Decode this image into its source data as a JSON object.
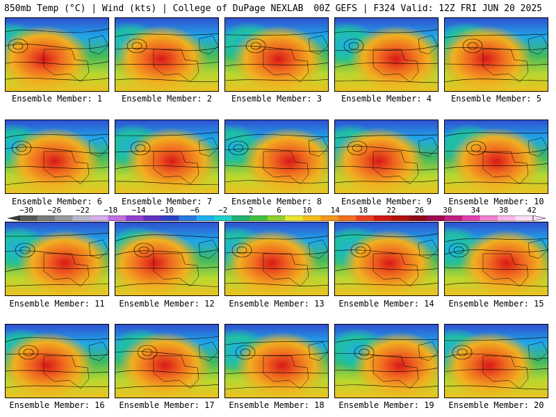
{
  "header": {
    "left": "850mb Temp (°C) | Wind (kts) | College of DuPage NEXLAB",
    "right": "00Z GEFS | F324 Valid: 12Z FRI JUN 20 2025"
  },
  "panels": [
    {
      "label": "Ensemble Member: 1"
    },
    {
      "label": "Ensemble Member: 2"
    },
    {
      "label": "Ensemble Member: 3"
    },
    {
      "label": "Ensemble Member: 4"
    },
    {
      "label": "Ensemble Member: 5"
    },
    {
      "label": "Ensemble Member: 6"
    },
    {
      "label": "Ensemble Member: 7"
    },
    {
      "label": "Ensemble Member: 8"
    },
    {
      "label": "Ensemble Member: 9"
    },
    {
      "label": "Ensemble Member: 10"
    },
    {
      "label": "Ensemble Member: 11"
    },
    {
      "label": "Ensemble Member: 12"
    },
    {
      "label": "Ensemble Member: 13"
    },
    {
      "label": "Ensemble Member: 14"
    },
    {
      "label": "Ensemble Member: 15"
    },
    {
      "label": "Ensemble Member: 16"
    },
    {
      "label": "Ensemble Member: 17"
    },
    {
      "label": "Ensemble Member: 18"
    },
    {
      "label": "Ensemble Member: 19"
    },
    {
      "label": "Ensemble Member: 20"
    }
  ],
  "colorbar": {
    "ticks": [
      "−30",
      "−26",
      "−22",
      "−18",
      "−14",
      "−10",
      "−6",
      "−2",
      "2",
      "6",
      "10",
      "14",
      "18",
      "22",
      "26",
      "30",
      "34",
      "38",
      "42"
    ],
    "colors": [
      "#5a5a5a",
      "#7a7a7a",
      "#9a9a9a",
      "#b8b8c8",
      "#d8b0e8",
      "#c070e0",
      "#9040d0",
      "#6030c0",
      "#3040c8",
      "#2878e0",
      "#20b0f0",
      "#20d0c8",
      "#20b070",
      "#40c040",
      "#90d030",
      "#e8e830",
      "#f0c020",
      "#f09820",
      "#f07020",
      "#e84020",
      "#d01818",
      "#b01010",
      "#900818",
      "#a00850",
      "#c02080",
      "#e040b0",
      "#f080d0",
      "#f8b8e8",
      "#fce0f4"
    ]
  }
}
